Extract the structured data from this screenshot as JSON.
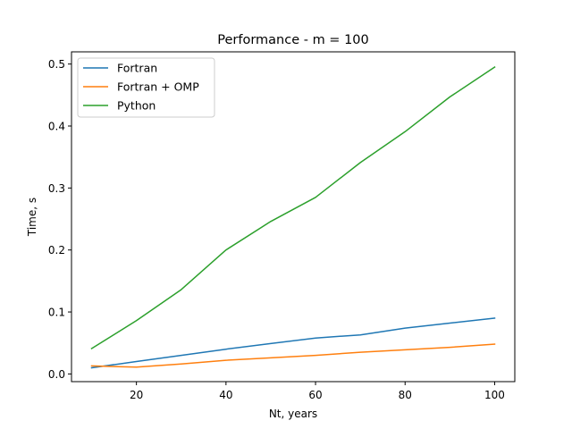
{
  "chart_data": {
    "type": "line",
    "title": "Performance - m = 100",
    "xlabel": "Nt, years",
    "ylabel": "Time, s",
    "xlim": [
      5.5,
      104.5
    ],
    "ylim": [
      -0.0124,
      0.5197
    ],
    "xticks": [
      20,
      40,
      60,
      80,
      100
    ],
    "yticks": [
      0.0,
      0.1,
      0.2,
      0.3,
      0.4,
      0.5
    ],
    "xtick_labels": [
      "20",
      "40",
      "60",
      "80",
      "100"
    ],
    "ytick_labels": [
      "0.0",
      "0.1",
      "0.2",
      "0.3",
      "0.4",
      "0.5"
    ],
    "grid": false,
    "legend_position": "upper left",
    "x": [
      10,
      20,
      30,
      40,
      50,
      60,
      70,
      80,
      90,
      100
    ],
    "series": [
      {
        "name": "Fortran",
        "color": "#1f77b4",
        "values": [
          0.01,
          0.02,
          0.03,
          0.04,
          0.049,
          0.058,
          0.063,
          0.074,
          0.082,
          0.09
        ]
      },
      {
        "name": "Fortran + OMP",
        "color": "#ff7f0e",
        "values": [
          0.013,
          0.011,
          0.016,
          0.022,
          0.026,
          0.03,
          0.035,
          0.039,
          0.043,
          0.048
        ]
      },
      {
        "name": "Python",
        "color": "#2ca02c",
        "values": [
          0.041,
          0.086,
          0.136,
          0.2,
          0.246,
          0.285,
          0.341,
          0.391,
          0.447,
          0.495
        ]
      }
    ]
  }
}
